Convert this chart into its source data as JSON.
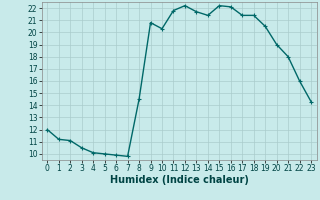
{
  "x": [
    0,
    1,
    2,
    3,
    4,
    5,
    6,
    7,
    8,
    9,
    10,
    11,
    12,
    13,
    14,
    15,
    16,
    17,
    18,
    19,
    20,
    21,
    22,
    23
  ],
  "y": [
    12,
    11.2,
    11.1,
    10.5,
    10.1,
    10.0,
    9.9,
    9.8,
    14.5,
    20.8,
    20.3,
    21.8,
    22.2,
    21.7,
    21.4,
    22.2,
    22.1,
    21.4,
    21.4,
    20.5,
    19.0,
    18.0,
    16.0,
    14.3
  ],
  "line_color": "#006868",
  "marker": "+",
  "marker_size": 3,
  "marker_linewidth": 0.8,
  "bg_color": "#c8eaea",
  "grid_color": "#aacccc",
  "xlabel": "Humidex (Indice chaleur)",
  "ylim": [
    9.5,
    22.5
  ],
  "xlim": [
    -0.5,
    23.5
  ],
  "yticks": [
    10,
    11,
    12,
    13,
    14,
    15,
    16,
    17,
    18,
    19,
    20,
    21,
    22
  ],
  "xticks": [
    0,
    1,
    2,
    3,
    4,
    5,
    6,
    7,
    8,
    9,
    10,
    11,
    12,
    13,
    14,
    15,
    16,
    17,
    18,
    19,
    20,
    21,
    22,
    23
  ],
  "tick_fontsize": 5.5,
  "xlabel_fontsize": 7,
  "linewidth": 1.0
}
